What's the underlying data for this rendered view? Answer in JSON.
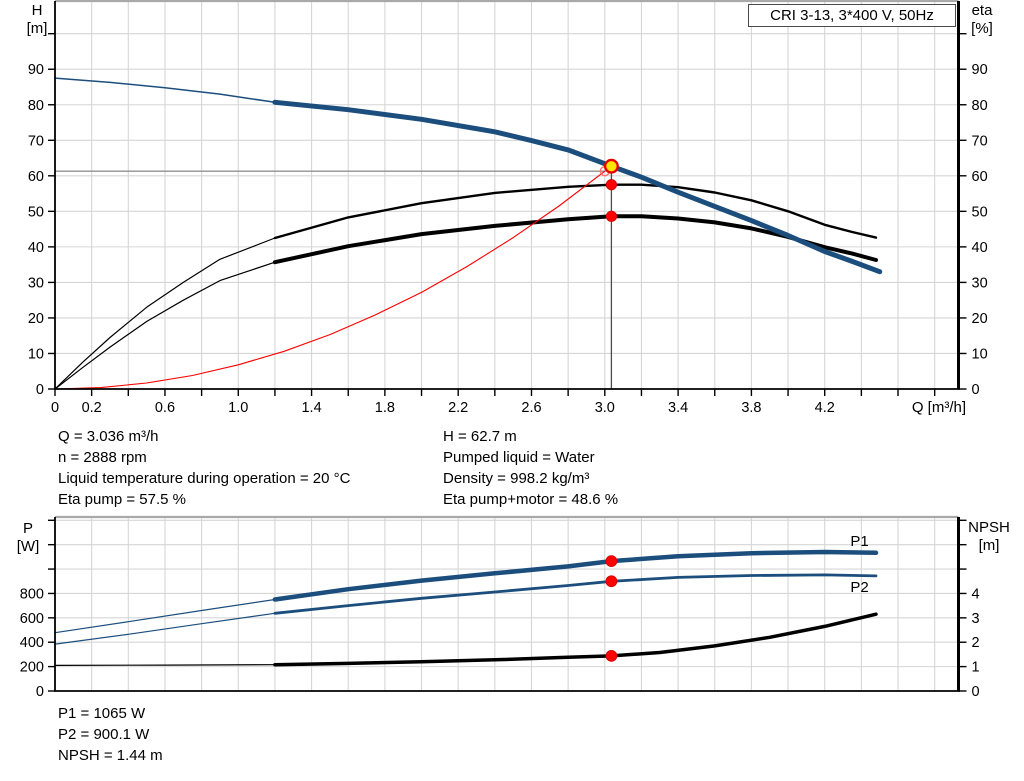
{
  "header": {
    "title": "CRI 3-13, 3*400 V, 50Hz"
  },
  "colors": {
    "curve_blue": "#1c4e7d",
    "curve_black": "#000000",
    "curve_red": "#ff0000",
    "duty_yellow": "#ffe600",
    "duty_ring": "#e60000",
    "marker_red": "#ff0000",
    "marker_edge": "#cc0000",
    "open_circle_red": "#ff7070",
    "grid": "#d6d6d6",
    "frame_gray": "#a9a9a9",
    "crosshair_v": "#4d4d4d",
    "crosshair_h": "#909090"
  },
  "operating_data": {
    "left": [
      "Q = 3.036 m³/h",
      "n = 2888 rpm",
      "Liquid temperature during operation = 20 °C",
      "Eta pump = 57.5 %"
    ],
    "right": [
      "H = 62.7 m",
      "Pumped liquid = Water",
      "Density = 998.2 kg/m³",
      "Eta pump+motor = 48.6 %"
    ]
  },
  "result_data": [
    "P1 = 1065 W",
    "P2 = 900.1 W",
    "NPSH = 1.44 m"
  ],
  "chart_data": [
    {
      "type": "line",
      "name": "head-efficiency-chart",
      "title": "CRI 3-13, 3*400 V, 50Hz",
      "x_axis": {
        "label": "Q [m³/h]",
        "range": [
          0,
          4.93
        ],
        "grid_step": 0.2,
        "tick_step": 0.2,
        "tick_max": 4.8,
        "show_ticks": true,
        "labeled_ticks": [
          {
            "v": 0,
            "t": "0"
          },
          {
            "v": 0.2,
            "t": "0.2"
          },
          {
            "v": 0.6,
            "t": "0.6"
          },
          {
            "v": 1.0,
            "t": "1.0"
          },
          {
            "v": 1.4,
            "t": "1.4"
          },
          {
            "v": 1.8,
            "t": "1.8"
          },
          {
            "v": 2.2,
            "t": "2.2"
          },
          {
            "v": 2.6,
            "t": "2.6"
          },
          {
            "v": 3.0,
            "t": "3.0"
          },
          {
            "v": 3.4,
            "t": "3.4"
          },
          {
            "v": 3.8,
            "t": "3.8"
          },
          {
            "v": 4.2,
            "t": "4.2"
          }
        ]
      },
      "left_axis": {
        "title_lines": [
          "H",
          "[m]"
        ],
        "range": [
          0,
          109.2
        ],
        "tick_minor": 10,
        "tick_major": 10,
        "tick_max": 100,
        "label_max": 90,
        "grid_major": 10
      },
      "right_axis": {
        "title_lines": [
          "eta",
          "[%]"
        ],
        "range": [
          0,
          109.2
        ],
        "tick_minor": 10,
        "tick_major": 10,
        "tick_max": 100,
        "label_max": 90
      },
      "series": [
        {
          "name": "eta-pump-extension-curve",
          "color": "curve_black",
          "width": 1.2,
          "axis": "right",
          "q": [
            0,
            0.15,
            0.3,
            0.5,
            0.7,
            0.9,
            1.2
          ],
          "v": [
            0,
            7.5,
            14.5,
            23,
            30,
            36.5,
            42.5
          ]
        },
        {
          "name": "eta-pump-curve",
          "color": "curve_black",
          "width": 2.4,
          "axis": "right",
          "q": [
            1.2,
            1.6,
            2.0,
            2.4,
            2.8,
            3.036,
            3.2,
            3.4,
            3.6,
            3.8,
            4.0,
            4.2,
            4.35,
            4.48
          ],
          "v": [
            42.5,
            48.3,
            52.3,
            55.2,
            56.9,
            57.5,
            57.5,
            56.8,
            55.3,
            53.1,
            50.0,
            46.2,
            44.2,
            42.6
          ]
        },
        {
          "name": "eta-pump-motor-extension-curve",
          "color": "curve_black",
          "width": 1.2,
          "axis": "right",
          "q": [
            0,
            0.15,
            0.3,
            0.5,
            0.7,
            0.9,
            1.2
          ],
          "v": [
            0,
            6,
            11.8,
            19,
            25,
            30.5,
            35.7
          ]
        },
        {
          "name": "eta-pump-motor-curve",
          "color": "curve_black",
          "width": 4,
          "axis": "right",
          "q": [
            1.2,
            1.6,
            2.0,
            2.4,
            2.8,
            3.036,
            3.2,
            3.4,
            3.6,
            3.8,
            4.0,
            4.2,
            4.35,
            4.48
          ],
          "v": [
            35.7,
            40.2,
            43.6,
            45.9,
            47.8,
            48.6,
            48.6,
            48.0,
            46.9,
            45.2,
            42.8,
            39.9,
            38.1,
            36.3
          ]
        },
        {
          "name": "system-curve",
          "color": "curve_red",
          "width": 1.1,
          "axis": "left",
          "q": [
            0,
            0.25,
            0.5,
            0.75,
            1.0,
            1.25,
            1.5,
            1.75,
            2.0,
            2.25,
            2.5,
            2.75,
            3.0
          ],
          "v": [
            0,
            0.4,
            1.7,
            3.8,
            6.8,
            10.6,
            15.3,
            20.9,
            27.2,
            34.5,
            42.6,
            51.5,
            61.3
          ]
        },
        {
          "name": "head-extension-curve",
          "color": "curve_blue",
          "width": 1.5,
          "axis": "left",
          "q": [
            0,
            0.3,
            0.6,
            0.9,
            1.2
          ],
          "v": [
            87.5,
            86.3,
            84.8,
            83.0,
            80.7
          ]
        },
        {
          "name": "head-curve",
          "color": "curve_blue",
          "width": 5,
          "axis": "left",
          "q": [
            1.2,
            1.6,
            2.0,
            2.4,
            2.6,
            2.8,
            3.036,
            3.2,
            3.4,
            3.6,
            3.8,
            4.0,
            4.2,
            4.35,
            4.5
          ],
          "v": [
            80.7,
            78.6,
            75.9,
            72.4,
            69.9,
            67.3,
            62.7,
            59.6,
            55.4,
            51.4,
            47.4,
            43.2,
            38.7,
            35.9,
            33.0
          ]
        }
      ],
      "crosshair": {
        "q": 3.036,
        "point_value": 62.7,
        "h_line_value": 61.3,
        "h_line_q_end": 3.0
      },
      "markers": [
        {
          "name": "system-intersection-marker",
          "type": "open-circle",
          "q": 3.0,
          "v": 61.3,
          "axis": "left",
          "r": 4.5
        },
        {
          "name": "eta-pump-duty-marker",
          "type": "dot",
          "q": 3.036,
          "v": 57.5,
          "axis": "right",
          "r": 5.2
        },
        {
          "name": "eta-pump-motor-duty-marker",
          "type": "dot",
          "q": 3.036,
          "v": 48.6,
          "axis": "right",
          "r": 5.2
        },
        {
          "name": "duty-point-marker",
          "type": "duty",
          "q": 3.036,
          "v": 62.7,
          "axis": "left",
          "r": 6.3
        }
      ],
      "series_labels": []
    },
    {
      "type": "line",
      "name": "power-npsh-chart",
      "x_axis": {
        "label": "",
        "range": [
          0,
          4.93
        ],
        "grid_step": 0.2,
        "tick_step": 0.2,
        "tick_max": 4.8,
        "show_ticks": false,
        "labeled_ticks": []
      },
      "left_axis": {
        "title_lines": [
          "P",
          "[W]"
        ],
        "range": [
          0,
          1427
        ],
        "tick_minor": 200,
        "tick_major": 200,
        "tick_max": 1400,
        "label_max": 800,
        "grid_major": 200
      },
      "right_axis": {
        "title_lines": [
          "NPSH",
          "[m]"
        ],
        "range": [
          0,
          7.135
        ],
        "tick_minor": 1,
        "tick_major": 1,
        "tick_max": 7,
        "label_max": 4
      },
      "series": [
        {
          "name": "npsh-extension-curve",
          "color": "curve_black",
          "width": 1.2,
          "axis": "right",
          "q": [
            0,
            0.6,
            1.2
          ],
          "v": [
            1.05,
            1.06,
            1.08
          ]
        },
        {
          "name": "npsh-curve",
          "color": "curve_black",
          "width": 3.5,
          "axis": "right",
          "q": [
            1.2,
            1.6,
            2.0,
            2.4,
            2.8,
            3.036,
            3.3,
            3.6,
            3.9,
            4.2,
            4.48
          ],
          "v": [
            1.08,
            1.13,
            1.2,
            1.28,
            1.38,
            1.44,
            1.58,
            1.85,
            2.2,
            2.65,
            3.15
          ]
        },
        {
          "name": "p1-extension-curve",
          "color": "curve_blue",
          "width": 1.2,
          "axis": "left",
          "q": [
            0,
            0.4,
            0.8,
            1.2
          ],
          "v": [
            478,
            568,
            660,
            750
          ]
        },
        {
          "name": "p1-curve",
          "color": "curve_blue",
          "width": 4.5,
          "axis": "left",
          "q": [
            1.2,
            1.6,
            2.0,
            2.4,
            2.8,
            3.036,
            3.4,
            3.8,
            4.2,
            4.48
          ],
          "v": [
            750,
            835,
            905,
            965,
            1022,
            1065,
            1105,
            1130,
            1140,
            1133
          ]
        },
        {
          "name": "p2-extension-curve",
          "color": "curve_blue",
          "width": 1.2,
          "axis": "left",
          "q": [
            0,
            0.4,
            0.8,
            1.2
          ],
          "v": [
            385,
            465,
            552,
            637
          ]
        },
        {
          "name": "p2-curve",
          "color": "curve_blue",
          "width": 2.8,
          "axis": "left",
          "q": [
            1.2,
            1.6,
            2.0,
            2.4,
            2.8,
            3.036,
            3.4,
            3.8,
            4.2,
            4.48
          ],
          "v": [
            637,
            700,
            760,
            812,
            865,
            900,
            932,
            947,
            952,
            944
          ]
        }
      ],
      "markers": [
        {
          "name": "p1-duty-marker",
          "type": "dot",
          "q": 3.036,
          "v": 1065,
          "axis": "left",
          "r": 5.5
        },
        {
          "name": "p2-duty-marker",
          "type": "dot",
          "q": 3.036,
          "v": 900.1,
          "axis": "left",
          "r": 5.5
        },
        {
          "name": "npsh-duty-marker",
          "type": "dot",
          "q": 3.036,
          "v": 1.44,
          "axis": "right",
          "r": 5.5
        }
      ],
      "series_labels": [
        {
          "text": "P1",
          "q": 4.39,
          "v": 1230,
          "axis": "left"
        },
        {
          "text": "P2",
          "q": 4.39,
          "v": 853,
          "axis": "left"
        }
      ]
    }
  ]
}
